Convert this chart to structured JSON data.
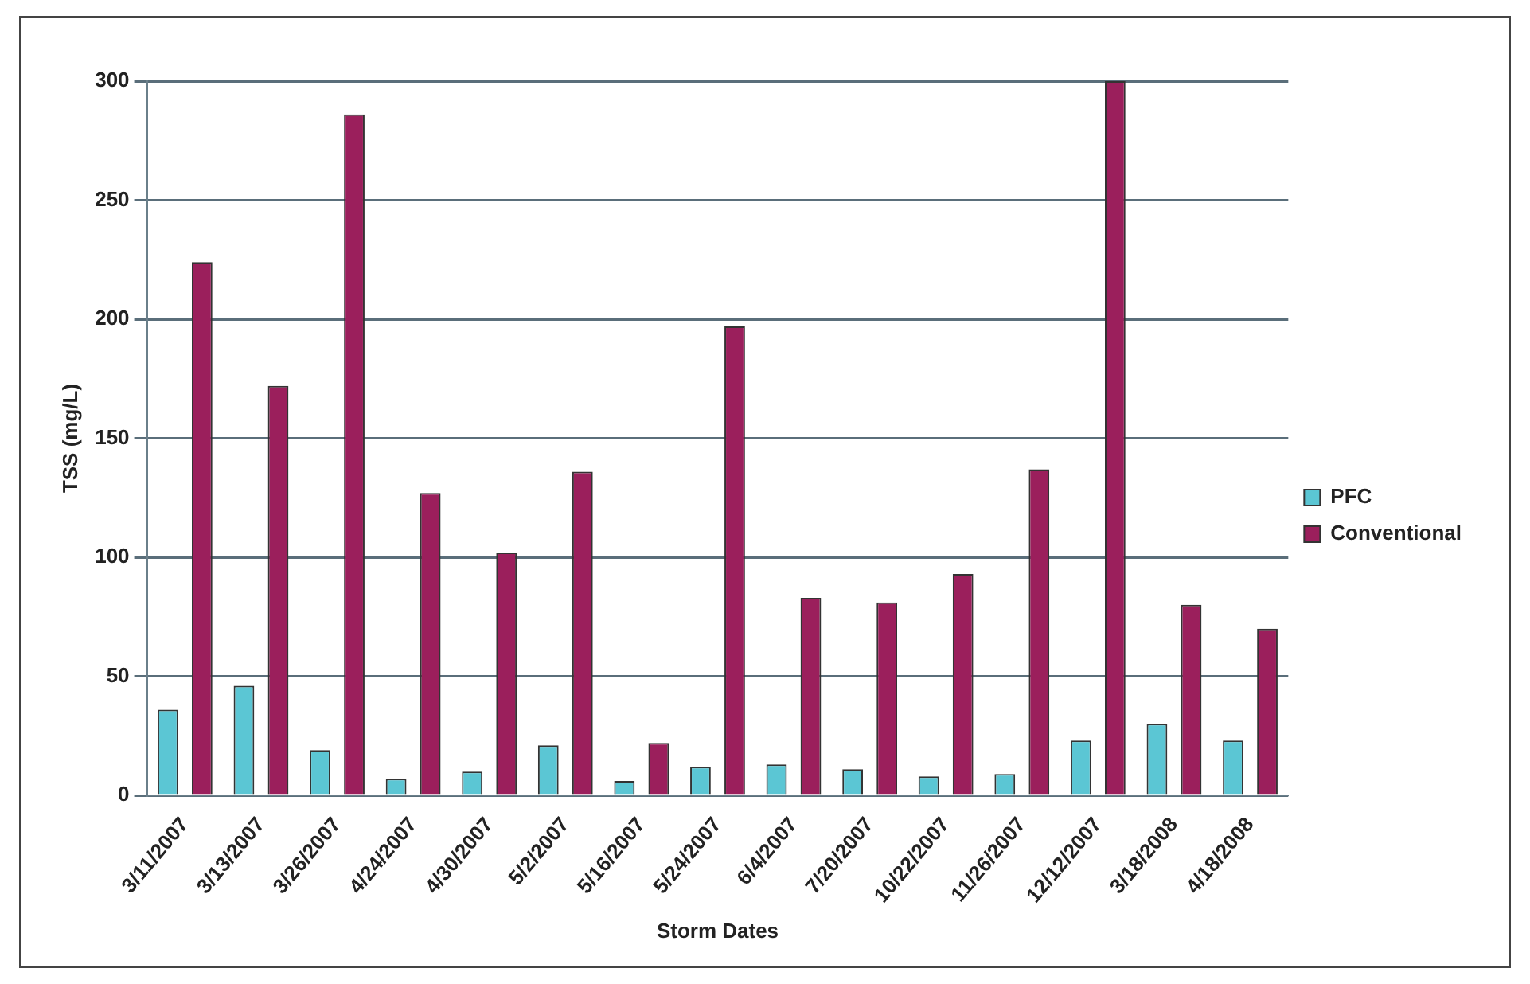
{
  "chart_data": {
    "type": "bar",
    "xlabel": "Storm Dates",
    "ylabel": "TSS (mg/L)",
    "categories": [
      "3/11/2007",
      "3/13/2007",
      "3/26/2007",
      "4/24/2007",
      "4/30/2007",
      "5/2/2007",
      "5/16/2007",
      "5/24/2007",
      "6/4/2007",
      "7/20/2007",
      "10/22/2007",
      "11/26/2007",
      "12/12/2007",
      "3/18/2008",
      "4/18/2008"
    ],
    "series": [
      {
        "name": "PFC",
        "color": "#5bc6d4",
        "values": [
          36,
          46,
          19,
          7,
          10,
          21,
          6,
          12,
          13,
          11,
          8,
          9,
          23,
          30,
          23
        ]
      },
      {
        "name": "Conventional",
        "color": "#9b1f5c",
        "values": [
          224,
          172,
          286,
          127,
          102,
          136,
          22,
          197,
          83,
          81,
          93,
          137,
          300,
          80,
          70
        ]
      }
    ],
    "ylim": [
      0,
      300
    ],
    "yticks": [
      0,
      50,
      100,
      150,
      200,
      250,
      300
    ],
    "grid": "y",
    "legend": "right"
  }
}
